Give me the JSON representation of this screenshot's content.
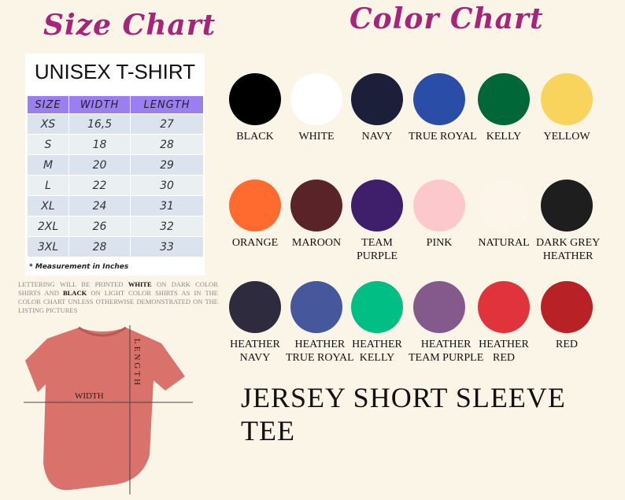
{
  "size_chart": {
    "title": "Size Chart",
    "subtitle": "UNISEX T-SHIRT",
    "headers": [
      "SIZE",
      "WIDTH",
      "LENGTH"
    ],
    "rows": [
      [
        "XS",
        "16,5",
        "27"
      ],
      [
        "S",
        "18",
        "28"
      ],
      [
        "M",
        "20",
        "29"
      ],
      [
        "L",
        "22",
        "30"
      ],
      [
        "XL",
        "24",
        "31"
      ],
      [
        "2XL",
        "26",
        "32"
      ],
      [
        "3XL",
        "28",
        "33"
      ]
    ],
    "note": "* Measurement in Inches"
  },
  "lettering": {
    "p1": "Lettering will be printed ",
    "w": "WHITE",
    "p2": " on dark color shirts and ",
    "b": "BLACK",
    "p3": " on light color shirts as in the color chart unless otherwise demonstrated on the listing pictures"
  },
  "shirt": {
    "width_label": "WIDTH",
    "length_label": "LENGTH",
    "color": "#d9726b"
  },
  "color_chart": {
    "title": "Color Chart",
    "colors": [
      {
        "name": "BLACK",
        "hex": "#000000"
      },
      {
        "name": "WHITE",
        "hex": "#ffffff"
      },
      {
        "name": "NAVY",
        "hex": "#1b1f3a"
      },
      {
        "name": "TRUE ROYAL",
        "hex": "#2a4ea8"
      },
      {
        "name": "KELLY",
        "hex": "#006838"
      },
      {
        "name": "YELLOW",
        "hex": "#f9d45c"
      },
      {
        "name": "ORANGE",
        "hex": "#ff6a2f"
      },
      {
        "name": "MAROON",
        "hex": "#5a2328"
      },
      {
        "name": "TEAM PURPLE",
        "hex": "#3f1f6b"
      },
      {
        "name": "PINK",
        "hex": "#fcc8cc"
      },
      {
        "name": "NATURAL",
        "hex": "#fef5ea"
      },
      {
        "name": "DARK GREY HEATHER",
        "hex": "#1e1e1e"
      },
      {
        "name": "HEATHER NAVY",
        "hex": "#2e2b3f"
      },
      {
        "name": "HEATHER TRUE ROYAL",
        "hex": "#46579c"
      },
      {
        "name": "HEATHER KELLY",
        "hex": "#00be84"
      },
      {
        "name": "HEATHER TEAM PURPLE",
        "hex": "#845a8d"
      },
      {
        "name": "HEATHER RED",
        "hex": "#e1333b"
      },
      {
        "name": "RED",
        "hex": "#b82227"
      }
    ]
  },
  "product": "JERSEY SHORT SLEEVE TEE"
}
